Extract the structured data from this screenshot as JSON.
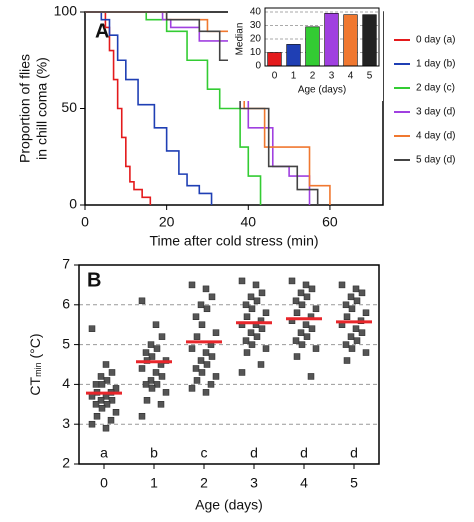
{
  "chart_data": [
    {
      "type": "line",
      "panel": "A",
      "ylabel": [
        "Proportion of flies",
        "in chill coma (%)"
      ],
      "xlabel": "Time after cold stress (min)",
      "xlim": [
        0,
        73
      ],
      "xticks": [
        0,
        20,
        40,
        60
      ],
      "ylim": [
        0,
        100
      ],
      "yticks": [
        0,
        50,
        100
      ],
      "step": true,
      "series": [
        {
          "name": "0 day (a)",
          "color": "#e41a1c",
          "x": [
            0,
            5,
            6,
            7,
            8,
            9,
            10,
            11,
            12,
            14,
            16
          ],
          "values": [
            100,
            92,
            80,
            65,
            50,
            35,
            20,
            12,
            8,
            4,
            0
          ]
        },
        {
          "name": "1 day (b)",
          "color": "#1f3fb4",
          "x": [
            0,
            4,
            6,
            8,
            10,
            13,
            17,
            20,
            23,
            25,
            28,
            31
          ],
          "values": [
            100,
            96,
            88,
            75,
            65,
            52,
            40,
            28,
            16,
            10,
            6,
            0
          ]
        },
        {
          "name": "2 day (c)",
          "color": "#33cc33",
          "x": [
            0,
            15,
            20,
            25,
            30,
            33,
            38,
            40,
            43
          ],
          "values": [
            100,
            96,
            90,
            75,
            60,
            50,
            30,
            15,
            0
          ]
        },
        {
          "name": "3 day (d)",
          "color": "#a040e0",
          "x": [
            0,
            19,
            21,
            28,
            36,
            40,
            46,
            50,
            55
          ],
          "values": [
            100,
            96,
            92,
            85,
            60,
            40,
            20,
            15,
            0
          ]
        },
        {
          "name": "4 day (d)",
          "color": "#f07830",
          "x": [
            0,
            20,
            30,
            36,
            39,
            44,
            55,
            60
          ],
          "values": [
            100,
            96,
            90,
            70,
            50,
            30,
            10,
            0
          ]
        },
        {
          "name": "5 day (d)",
          "color": "#444444",
          "x": [
            0,
            20,
            28,
            33,
            38,
            45,
            52,
            57
          ],
          "values": [
            100,
            96,
            90,
            75,
            50,
            20,
            8,
            0
          ]
        }
      ]
    },
    {
      "type": "bar",
      "ylabel": "Median",
      "xlabel": "Age (days)",
      "categories": [
        "0",
        "1",
        "2",
        "3",
        "4",
        "5"
      ],
      "values": [
        10,
        16,
        29,
        39,
        38,
        38
      ],
      "colors": [
        "#e41a1c",
        "#1f3fb4",
        "#33cc33",
        "#a040e0",
        "#f07830",
        "#222222"
      ],
      "ylim": [
        0,
        40
      ],
      "yticks": [
        0,
        10,
        20,
        30,
        40
      ],
      "grid": true
    },
    {
      "type": "strip",
      "panel": "B",
      "ylabel": {
        "main": "CT",
        "sub": "min",
        "unit": " (°C)"
      },
      "xlabel": "Age (days)",
      "ylim": [
        2,
        7
      ],
      "yticks": [
        2,
        3,
        4,
        5,
        6,
        7
      ],
      "grid_ticks": [
        3,
        4,
        5,
        6
      ],
      "mean_color": "#e8262b",
      "groups": [
        {
          "category": "0",
          "letter": "a",
          "mean": 3.78,
          "values": [
            5.4,
            4.5,
            4.3,
            4.2,
            4.1,
            4.0,
            4.0,
            3.9,
            3.8,
            3.8,
            3.7,
            3.7,
            3.6,
            3.6,
            3.5,
            3.5,
            3.4,
            3.3,
            3.2,
            3.1,
            3.0,
            2.9
          ]
        },
        {
          "category": "1",
          "letter": "b",
          "mean": 4.57,
          "values": [
            6.1,
            5.5,
            5.2,
            5.0,
            4.9,
            4.8,
            4.7,
            4.6,
            4.6,
            4.5,
            4.4,
            4.3,
            4.2,
            4.1,
            4.0,
            4.0,
            3.9,
            3.8,
            3.6,
            3.5,
            3.2
          ]
        },
        {
          "category": "2",
          "letter": "c",
          "mean": 5.07,
          "values": [
            6.5,
            6.4,
            6.2,
            6.0,
            5.9,
            5.7,
            5.5,
            5.3,
            5.2,
            5.0,
            4.9,
            4.8,
            4.7,
            4.6,
            4.5,
            4.4,
            4.3,
            4.2,
            4.1,
            4.0,
            3.9,
            3.8
          ]
        },
        {
          "category": "3",
          "letter": "d",
          "mean": 5.55,
          "values": [
            6.6,
            6.5,
            6.3,
            6.2,
            6.1,
            6.0,
            5.9,
            5.8,
            5.7,
            5.6,
            5.5,
            5.5,
            5.4,
            5.3,
            5.2,
            5.1,
            5.0,
            4.9,
            4.8,
            4.5,
            4.3
          ]
        },
        {
          "category": "4",
          "letter": "d",
          "mean": 5.65,
          "values": [
            6.6,
            6.5,
            6.4,
            6.3,
            6.2,
            6.1,
            6.0,
            5.9,
            5.8,
            5.7,
            5.6,
            5.5,
            5.4,
            5.3,
            5.2,
            5.1,
            5.0,
            4.9,
            4.7,
            4.2
          ]
        },
        {
          "category": "5",
          "letter": "d",
          "mean": 5.57,
          "values": [
            6.5,
            6.4,
            6.3,
            6.2,
            6.1,
            6.0,
            5.9,
            5.8,
            5.7,
            5.6,
            5.5,
            5.4,
            5.3,
            5.2,
            5.1,
            5.0,
            4.9,
            4.8,
            4.6
          ]
        }
      ]
    }
  ]
}
